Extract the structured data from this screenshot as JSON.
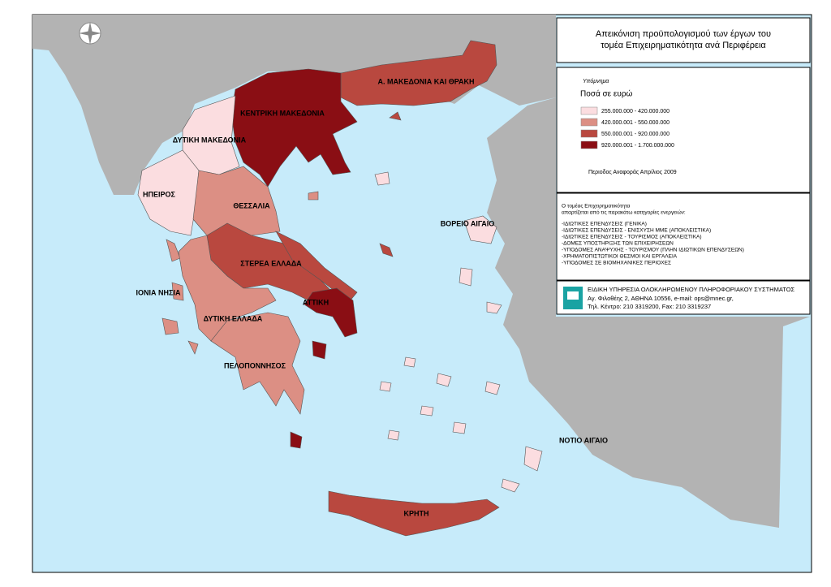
{
  "title": {
    "lines": [
      "Απεικόνιση προϋπολογισμού των έργων του",
      "τομέα Επιχειρηματικότητα ανά Περιφέρεια"
    ]
  },
  "legend": {
    "heading": "Υπόμνημα",
    "subtitle": "Ποσά σε ευρώ",
    "classes": [
      {
        "label": "255.000.000 - 420.000.000",
        "color": "#fbdde0"
      },
      {
        "label": "420.000.001 - 550.000.000",
        "color": "#dc8f84"
      },
      {
        "label": "550.000.001 - 920.000.000",
        "color": "#b9483f"
      },
      {
        "label": "920.000.001 - 1.700.000.000",
        "color": "#8a0e14"
      }
    ],
    "period": "Περιοδος Αναφοράς Απρίλιος 2009"
  },
  "notes": {
    "intro": [
      "Ο τομέας Επιχειρηματικότητα",
      "απαρτίζεται από τις παρακάτω κατηγορίες ενεργειών:"
    ],
    "items": [
      "-ΙΔΙΩΤΙΚΕΣ ΕΠΕΝΔΥΣΕΙΣ (ΓΕΝΙΚΑ)",
      "-ΙΔΙΩΤΙΚΕΣ ΕΠΕΝΔΥΣΕΙΣ - ΕΝΙΣΧΥΣΗ ΜΜΕ (ΑΠΟΚΛΕΙΣΤΙΚΑ)",
      "-ΙΔΙΩΤΙΚΕΣ ΕΠΕΝΔΥΣΕΙΣ - ΤΟΥΡΙΣΜΟΣ (ΑΠΟΚΛΕΙΣΤΙΚΑ)",
      "-ΔΟΜΕΣ ΥΠΟΣΤΗΡΙΞΗΣ ΤΩΝ ΕΠΙΧΕΙΡΗΣΕΩΝ",
      "-ΥΠΟΔΟΜΕΣ ΑΝΑΨΥΧΗΣ - ΤΟΥΡΙΣΜΟΥ (ΠΛΗΝ ΙΔΙΩΤΙΚΩΝ ΕΠΕΝΔΥΣΕΩΝ)",
      "-ΧΡΗΜΑΤΟΠΙΣΤΩΤΙΚΟΙ ΘΕΣΜΟΙ ΚΑΙ ΕΡΓΑΛΕΙΑ",
      "-ΥΠΟΔΟΜΕΣ ΣΕ ΒΙΟΜΗΧΑΝΙΚΕΣ ΠΕΡΙΟΧΕΣ"
    ]
  },
  "footer": {
    "agency": "ΕΙΔΙΚΗ ΥΠΗΡΕΣΙΑ ΟΛΟΚΛΗΡΩΜΕΝΟΥ ΠΛΗΡΟΦΟΡΙΑΚΟΥ ΣΥΣΤΗΜΑΤΟΣ",
    "address": "Αγ. Φιλοθέης 2, ΑΘΗΝΑ 10556, e-mail: ops@mnec.gr,",
    "phone": "Τηλ. Κέντρο: 210 3319200, Fax: 210 3319237"
  },
  "regions": [
    {
      "name": "Α. ΜΑΚΕΔΟΝΙΑ ΚΑΙ ΘΡΑΚΗ",
      "color": "#b9483f"
    },
    {
      "name": "ΚΕΝΤΡΙΚΗ ΜΑΚΕΔΟΝΙΑ",
      "color": "#8a0e14"
    },
    {
      "name": "ΔΥΤΙΚΗ ΜΑΚΕΔΟΝΙΑ",
      "color": "#fbdde0"
    },
    {
      "name": "ΗΠΕΙΡΟΣ",
      "color": "#fbdde0"
    },
    {
      "name": "ΘΕΣΣΑΛΙΑ",
      "color": "#dc8f84"
    },
    {
      "name": "ΣΤΕΡΕΑ ΕΛΛΑΔΑ",
      "color": "#b9483f"
    },
    {
      "name": "ΙΟΝΙΑ ΝΗΣΙΑ",
      "color": "#dc8f84"
    },
    {
      "name": "ΔΥΤΙΚΗ ΕΛΛΑΔΑ",
      "color": "#dc8f84"
    },
    {
      "name": "ΑΤΤΙΚΗ",
      "color": "#8a0e14"
    },
    {
      "name": "ΠΕΛΟΠΟΝΝΗΣΟΣ",
      "color": "#dc8f84"
    },
    {
      "name": "ΒΟΡΕΙΟ ΑΙΓΑΙΟ",
      "color": "#fbdde0"
    },
    {
      "name": "ΝΟΤΙΟ ΑΙΓΑΙΟ",
      "color": "#fbdde0"
    },
    {
      "name": "ΚΡΗΤΗ",
      "color": "#b9483f"
    }
  ]
}
